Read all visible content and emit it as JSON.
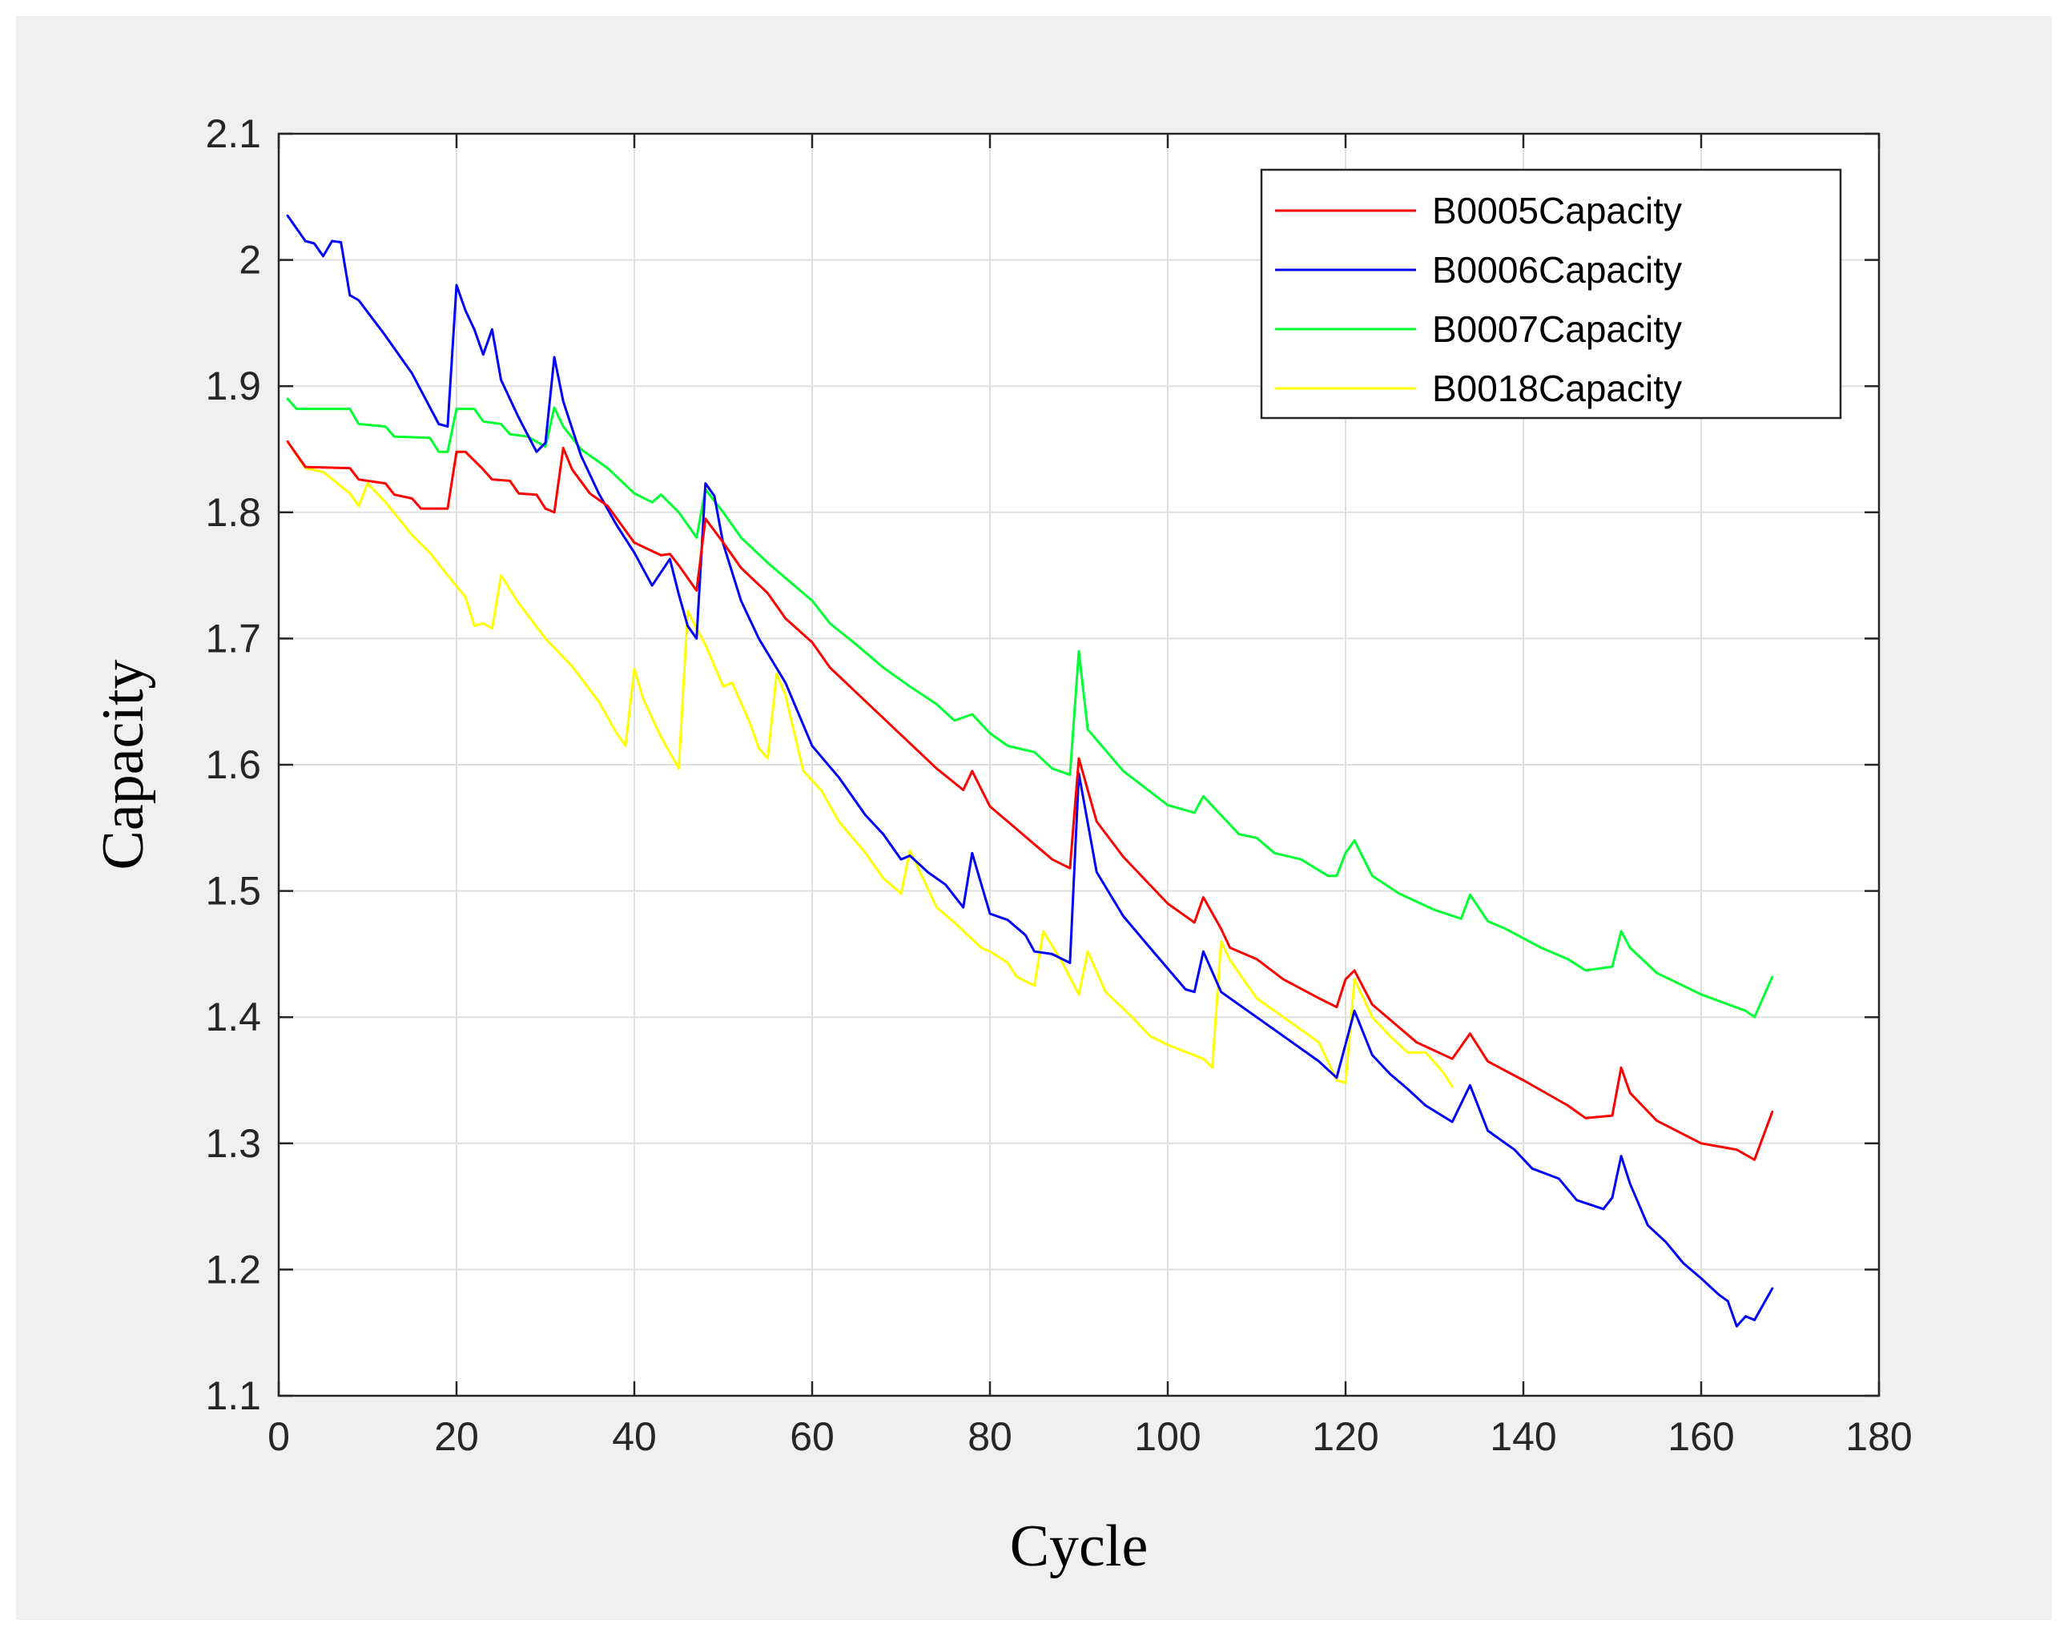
{
  "chart_data": {
    "type": "line",
    "title": "",
    "xlabel": "Cycle",
    "ylabel": "Capacity",
    "xlim": [
      0,
      180
    ],
    "ylim": [
      1.1,
      2.1
    ],
    "xticks": [
      "0",
      "20",
      "40",
      "60",
      "80",
      "100",
      "120",
      "140",
      "160",
      "180"
    ],
    "yticks": [
      "1.1",
      "1.2",
      "1.3",
      "1.4",
      "1.5",
      "1.6",
      "1.7",
      "1.8",
      "1.9",
      "2",
      "2.1"
    ],
    "grid": true,
    "legend_position": "top-right",
    "series": [
      {
        "name": "B0005Capacity",
        "color": "#ff0000",
        "points": [
          [
            1,
            1.856
          ],
          [
            3,
            1.836
          ],
          [
            8,
            1.835
          ],
          [
            9,
            1.826
          ],
          [
            12,
            1.823
          ],
          [
            13,
            1.814
          ],
          [
            15,
            1.811
          ],
          [
            16,
            1.803
          ],
          [
            19,
            1.803
          ],
          [
            20,
            1.848
          ],
          [
            21,
            1.848
          ],
          [
            23,
            1.834
          ],
          [
            24,
            1.826
          ],
          [
            26,
            1.825
          ],
          [
            27,
            1.815
          ],
          [
            29,
            1.814
          ],
          [
            30,
            1.803
          ],
          [
            31,
            1.8
          ],
          [
            32,
            1.851
          ],
          [
            33,
            1.834
          ],
          [
            35,
            1.815
          ],
          [
            37,
            1.805
          ],
          [
            40,
            1.776
          ],
          [
            43,
            1.766
          ],
          [
            44,
            1.767
          ],
          [
            45,
            1.758
          ],
          [
            47,
            1.738
          ],
          [
            48,
            1.795
          ],
          [
            50,
            1.776
          ],
          [
            52,
            1.756
          ],
          [
            55,
            1.736
          ],
          [
            57,
            1.716
          ],
          [
            60,
            1.697
          ],
          [
            62,
            1.677
          ],
          [
            65,
            1.657
          ],
          [
            68,
            1.637
          ],
          [
            71,
            1.617
          ],
          [
            74,
            1.597
          ],
          [
            77,
            1.58
          ],
          [
            78,
            1.595
          ],
          [
            80,
            1.567
          ],
          [
            82,
            1.555
          ],
          [
            85,
            1.537
          ],
          [
            87,
            1.525
          ],
          [
            89,
            1.518
          ],
          [
            90,
            1.605
          ],
          [
            92,
            1.555
          ],
          [
            95,
            1.527
          ],
          [
            100,
            1.49
          ],
          [
            103,
            1.475
          ],
          [
            104,
            1.495
          ],
          [
            106,
            1.47
          ],
          [
            107,
            1.455
          ],
          [
            110,
            1.446
          ],
          [
            113,
            1.43
          ],
          [
            117,
            1.415
          ],
          [
            119,
            1.408
          ],
          [
            120,
            1.43
          ],
          [
            121,
            1.437
          ],
          [
            123,
            1.41
          ],
          [
            128,
            1.38
          ],
          [
            132,
            1.367
          ],
          [
            134,
            1.387
          ],
          [
            136,
            1.365
          ],
          [
            140,
            1.35
          ],
          [
            145,
            1.33
          ],
          [
            147,
            1.32
          ],
          [
            150,
            1.322
          ],
          [
            151,
            1.36
          ],
          [
            152,
            1.34
          ],
          [
            155,
            1.318
          ],
          [
            160,
            1.3
          ],
          [
            164,
            1.295
          ],
          [
            166,
            1.287
          ],
          [
            168,
            1.325
          ]
        ]
      },
      {
        "name": "B0006Capacity",
        "color": "#0000ff",
        "points": [
          [
            1,
            2.035
          ],
          [
            2,
            2.025
          ],
          [
            3,
            2.015
          ],
          [
            4,
            2.013
          ],
          [
            5,
            2.003
          ],
          [
            6,
            2.015
          ],
          [
            7,
            2.014
          ],
          [
            8,
            1.972
          ],
          [
            9,
            1.968
          ],
          [
            12,
            1.94
          ],
          [
            15,
            1.91
          ],
          [
            18,
            1.87
          ],
          [
            19,
            1.868
          ],
          [
            20,
            1.98
          ],
          [
            21,
            1.96
          ],
          [
            22,
            1.945
          ],
          [
            23,
            1.925
          ],
          [
            24,
            1.945
          ],
          [
            25,
            1.905
          ],
          [
            27,
            1.875
          ],
          [
            29,
            1.848
          ],
          [
            30,
            1.855
          ],
          [
            31,
            1.923
          ],
          [
            32,
            1.888
          ],
          [
            34,
            1.845
          ],
          [
            36,
            1.815
          ],
          [
            38,
            1.79
          ],
          [
            40,
            1.768
          ],
          [
            42,
            1.742
          ],
          [
            44,
            1.763
          ],
          [
            45,
            1.735
          ],
          [
            46,
            1.71
          ],
          [
            47,
            1.7
          ],
          [
            48,
            1.823
          ],
          [
            49,
            1.813
          ],
          [
            50,
            1.775
          ],
          [
            52,
            1.73
          ],
          [
            54,
            1.7
          ],
          [
            57,
            1.665
          ],
          [
            60,
            1.615
          ],
          [
            63,
            1.59
          ],
          [
            66,
            1.56
          ],
          [
            68,
            1.545
          ],
          [
            70,
            1.525
          ],
          [
            71,
            1.528
          ],
          [
            73,
            1.515
          ],
          [
            75,
            1.505
          ],
          [
            77,
            1.487
          ],
          [
            78,
            1.53
          ],
          [
            80,
            1.482
          ],
          [
            82,
            1.477
          ],
          [
            84,
            1.465
          ],
          [
            85,
            1.452
          ],
          [
            87,
            1.45
          ],
          [
            89,
            1.443
          ],
          [
            90,
            1.593
          ],
          [
            92,
            1.515
          ],
          [
            95,
            1.48
          ],
          [
            98,
            1.455
          ],
          [
            102,
            1.422
          ],
          [
            103,
            1.42
          ],
          [
            104,
            1.452
          ],
          [
            106,
            1.42
          ],
          [
            110,
            1.4
          ],
          [
            113,
            1.385
          ],
          [
            117,
            1.365
          ],
          [
            119,
            1.352
          ],
          [
            121,
            1.405
          ],
          [
            123,
            1.37
          ],
          [
            125,
            1.355
          ],
          [
            127,
            1.343
          ],
          [
            129,
            1.33
          ],
          [
            132,
            1.317
          ],
          [
            134,
            1.346
          ],
          [
            136,
            1.31
          ],
          [
            139,
            1.295
          ],
          [
            141,
            1.28
          ],
          [
            144,
            1.272
          ],
          [
            146,
            1.255
          ],
          [
            149,
            1.248
          ],
          [
            150,
            1.257
          ],
          [
            151,
            1.29
          ],
          [
            152,
            1.268
          ],
          [
            154,
            1.235
          ],
          [
            156,
            1.222
          ],
          [
            158,
            1.205
          ],
          [
            160,
            1.193
          ],
          [
            162,
            1.18
          ],
          [
            163,
            1.175
          ],
          [
            164,
            1.155
          ],
          [
            165,
            1.163
          ],
          [
            166,
            1.16
          ],
          [
            168,
            1.185
          ]
        ]
      },
      {
        "name": "B0007Capacity",
        "color": "#00ff33",
        "points": [
          [
            1,
            1.89
          ],
          [
            2,
            1.882
          ],
          [
            8,
            1.882
          ],
          [
            9,
            1.87
          ],
          [
            12,
            1.868
          ],
          [
            13,
            1.86
          ],
          [
            17,
            1.859
          ],
          [
            18,
            1.848
          ],
          [
            19,
            1.848
          ],
          [
            20,
            1.882
          ],
          [
            22,
            1.882
          ],
          [
            23,
            1.872
          ],
          [
            25,
            1.87
          ],
          [
            26,
            1.862
          ],
          [
            28,
            1.86
          ],
          [
            30,
            1.852
          ],
          [
            31,
            1.883
          ],
          [
            32,
            1.868
          ],
          [
            34,
            1.85
          ],
          [
            37,
            1.835
          ],
          [
            40,
            1.815
          ],
          [
            42,
            1.808
          ],
          [
            43,
            1.814
          ],
          [
            45,
            1.8
          ],
          [
            47,
            1.78
          ],
          [
            48,
            1.818
          ],
          [
            50,
            1.8
          ],
          [
            52,
            1.78
          ],
          [
            55,
            1.76
          ],
          [
            57,
            1.748
          ],
          [
            60,
            1.73
          ],
          [
            62,
            1.712
          ],
          [
            65,
            1.695
          ],
          [
            68,
            1.677
          ],
          [
            71,
            1.662
          ],
          [
            74,
            1.648
          ],
          [
            76,
            1.635
          ],
          [
            78,
            1.64
          ],
          [
            80,
            1.625
          ],
          [
            82,
            1.615
          ],
          [
            85,
            1.61
          ],
          [
            87,
            1.597
          ],
          [
            89,
            1.592
          ],
          [
            90,
            1.69
          ],
          [
            91,
            1.628
          ],
          [
            95,
            1.595
          ],
          [
            100,
            1.568
          ],
          [
            103,
            1.562
          ],
          [
            104,
            1.575
          ],
          [
            106,
            1.56
          ],
          [
            108,
            1.545
          ],
          [
            110,
            1.542
          ],
          [
            112,
            1.53
          ],
          [
            115,
            1.525
          ],
          [
            118,
            1.512
          ],
          [
            119,
            1.512
          ],
          [
            120,
            1.53
          ],
          [
            121,
            1.54
          ],
          [
            123,
            1.512
          ],
          [
            126,
            1.498
          ],
          [
            130,
            1.485
          ],
          [
            133,
            1.478
          ],
          [
            134,
            1.497
          ],
          [
            136,
            1.476
          ],
          [
            138,
            1.47
          ],
          [
            142,
            1.455
          ],
          [
            145,
            1.446
          ],
          [
            147,
            1.437
          ],
          [
            150,
            1.44
          ],
          [
            151,
            1.468
          ],
          [
            152,
            1.455
          ],
          [
            155,
            1.435
          ],
          [
            160,
            1.418
          ],
          [
            165,
            1.405
          ],
          [
            166,
            1.4
          ],
          [
            168,
            1.432
          ]
        ]
      },
      {
        "name": "B0018Capacity",
        "color": "#ffff00",
        "points": [
          [
            1,
            1.856
          ],
          [
            3,
            1.835
          ],
          [
            5,
            1.832
          ],
          [
            8,
            1.815
          ],
          [
            9,
            1.805
          ],
          [
            10,
            1.823
          ],
          [
            12,
            1.808
          ],
          [
            15,
            1.782
          ],
          [
            17,
            1.768
          ],
          [
            19,
            1.75
          ],
          [
            21,
            1.733
          ],
          [
            22,
            1.71
          ],
          [
            23,
            1.712
          ],
          [
            24,
            1.708
          ],
          [
            25,
            1.75
          ],
          [
            27,
            1.728
          ],
          [
            30,
            1.7
          ],
          [
            33,
            1.678
          ],
          [
            36,
            1.65
          ],
          [
            38,
            1.625
          ],
          [
            39,
            1.615
          ],
          [
            40,
            1.676
          ],
          [
            41,
            1.652
          ],
          [
            43,
            1.622
          ],
          [
            45,
            1.597
          ],
          [
            46,
            1.722
          ],
          [
            47,
            1.708
          ],
          [
            48,
            1.695
          ],
          [
            50,
            1.662
          ],
          [
            51,
            1.665
          ],
          [
            53,
            1.633
          ],
          [
            54,
            1.613
          ],
          [
            55,
            1.605
          ],
          [
            56,
            1.672
          ],
          [
            57,
            1.655
          ],
          [
            59,
            1.595
          ],
          [
            61,
            1.58
          ],
          [
            63,
            1.555
          ],
          [
            66,
            1.53
          ],
          [
            68,
            1.51
          ],
          [
            70,
            1.498
          ],
          [
            71,
            1.532
          ],
          [
            72,
            1.517
          ],
          [
            74,
            1.487
          ],
          [
            76,
            1.475
          ],
          [
            79,
            1.455
          ],
          [
            80,
            1.452
          ],
          [
            82,
            1.443
          ],
          [
            83,
            1.432
          ],
          [
            85,
            1.425
          ],
          [
            86,
            1.468
          ],
          [
            88,
            1.445
          ],
          [
            90,
            1.418
          ],
          [
            91,
            1.452
          ],
          [
            93,
            1.42
          ],
          [
            96,
            1.4
          ],
          [
            98,
            1.385
          ],
          [
            100,
            1.378
          ],
          [
            104,
            1.367
          ],
          [
            105,
            1.36
          ],
          [
            106,
            1.46
          ],
          [
            107,
            1.445
          ],
          [
            110,
            1.415
          ],
          [
            113,
            1.4
          ],
          [
            117,
            1.38
          ],
          [
            119,
            1.35
          ],
          [
            120,
            1.348
          ],
          [
            121,
            1.43
          ],
          [
            123,
            1.4
          ],
          [
            125,
            1.385
          ],
          [
            127,
            1.372
          ],
          [
            129,
            1.372
          ],
          [
            131,
            1.356
          ],
          [
            132,
            1.345
          ]
        ]
      }
    ]
  }
}
